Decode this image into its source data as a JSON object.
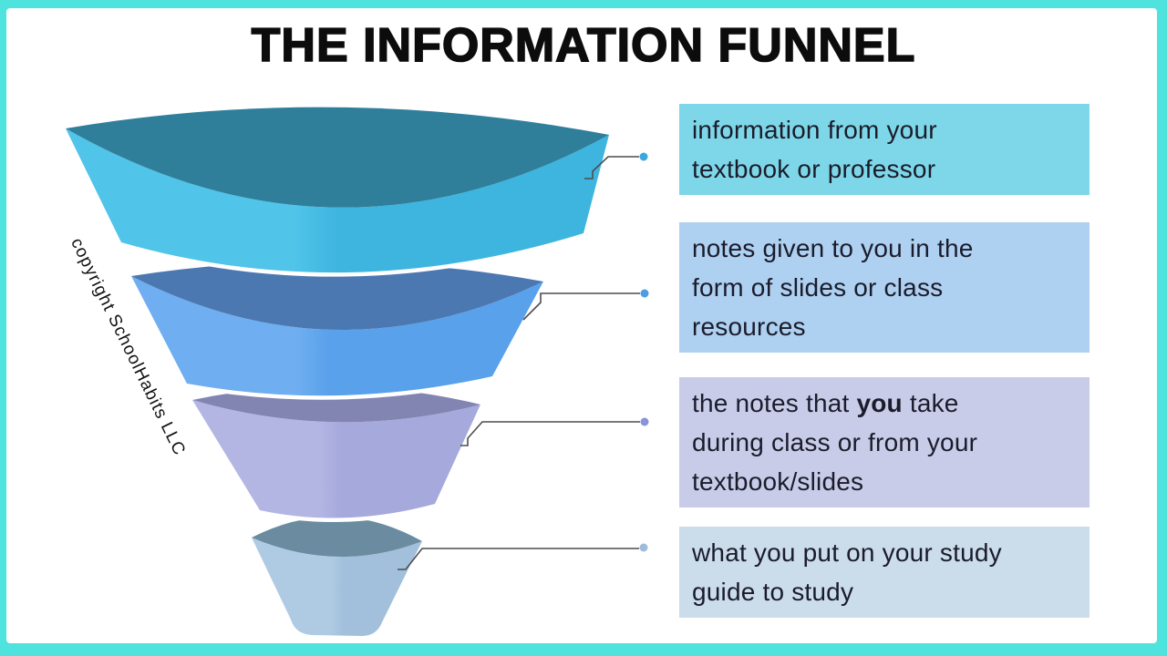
{
  "page": {
    "title": "THE INFORMATION FUNNEL",
    "copyright": "copyright SchoolHabits LLC",
    "border_color": "#4fe3dd",
    "panel_color": "#ffffff",
    "connector_color": "#4d4d4d"
  },
  "funnel": {
    "tiers": [
      {
        "id": "tier-1",
        "rim_color": "#2f7f9b",
        "body_color": "#3eb5df",
        "body_highlight": "#50c4e9"
      },
      {
        "id": "tier-2",
        "rim_color": "#4c78b2",
        "body_color": "#59a1eb",
        "body_highlight": "#6faef0"
      },
      {
        "id": "tier-3",
        "rim_color": "#8285b2",
        "body_color": "#a5a9db",
        "body_highlight": "#b3b6e3"
      },
      {
        "id": "tier-4",
        "rim_color": "#6a8ba0",
        "body_color": "#a2c0db",
        "body_highlight": "#afcbe4"
      }
    ]
  },
  "callouts": [
    {
      "bg": "#7ed7e8",
      "dot_color": "#3aa7e0",
      "lines": [
        "information from your",
        "textbook or professor"
      ]
    },
    {
      "bg": "#aed0f1",
      "dot_color": "#4c9de2",
      "lines": [
        "notes given to you in the",
        "form of slides or class",
        "resources"
      ]
    },
    {
      "bg": "#c9cce9",
      "dot_color": "#8a92d8",
      "lines": [
        "the notes that **you** take",
        "during class or from your",
        "textbook/slides"
      ]
    },
    {
      "bg": "#cbdcea",
      "dot_color": "#9fbcd9",
      "lines": [
        "what you put on your study",
        "guide to study"
      ]
    }
  ]
}
